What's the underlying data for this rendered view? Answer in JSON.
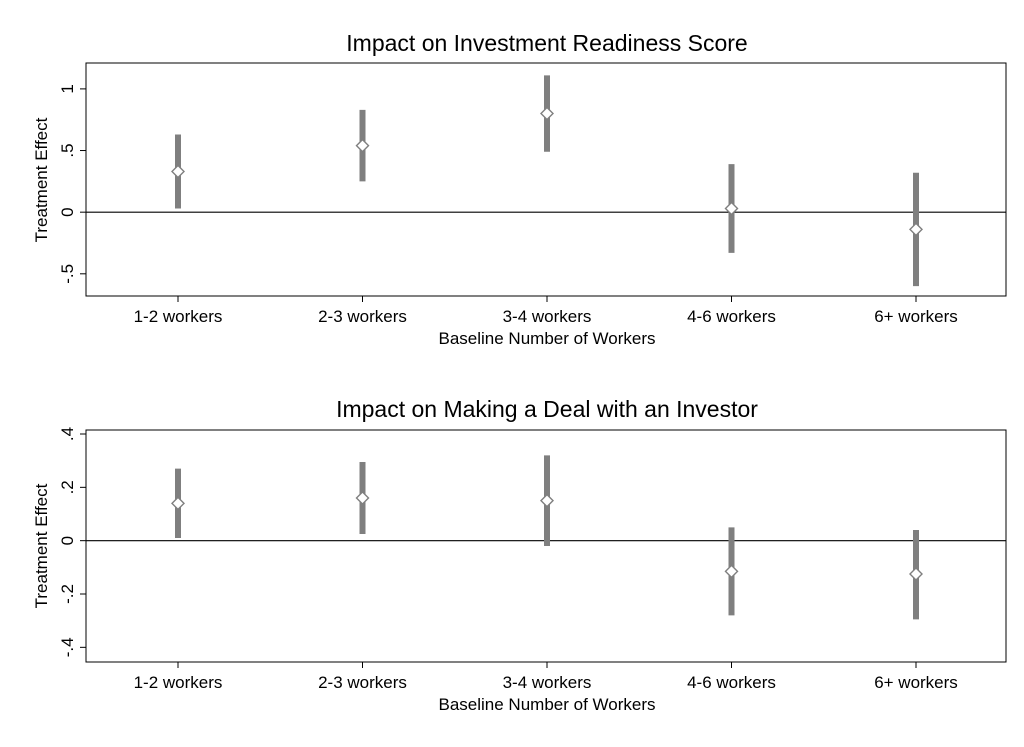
{
  "colors": {
    "ci": "#7f7f7f",
    "marker_stroke": "#7f7f7f",
    "marker_fill": "#ffffff",
    "axis": "#000000"
  },
  "chart_data": [
    {
      "type": "scatter",
      "title": "Impact on Investment Readiness Score",
      "xlabel": "Baseline Number of Workers",
      "ylabel": "Treatment Effect",
      "categories": [
        "1-2 workers",
        "2-3 workers",
        "3-4 workers",
        "4-6 workers",
        "6+ workers"
      ],
      "estimates": [
        0.33,
        0.54,
        0.8,
        0.03,
        -0.14
      ],
      "ci_low": [
        0.03,
        0.25,
        0.49,
        -0.33,
        -0.6
      ],
      "ci_high": [
        0.63,
        0.83,
        1.11,
        0.39,
        0.32
      ],
      "yticks": [
        1,
        0.5,
        0,
        -0.5
      ],
      "ytick_labels": [
        "1",
        ".5",
        "0",
        "-.5"
      ],
      "ylim": [
        -0.68,
        1.21
      ],
      "reference_line": 0,
      "grid": false,
      "legend": "none"
    },
    {
      "type": "scatter",
      "title": "Impact on Making a Deal with an Investor",
      "xlabel": "Baseline Number of Workers",
      "ylabel": "Treatment Effect",
      "categories": [
        "1-2 workers",
        "2-3 workers",
        "3-4 workers",
        "4-6 workers",
        "6+ workers"
      ],
      "estimates": [
        0.14,
        0.16,
        0.15,
        -0.115,
        -0.125
      ],
      "ci_low": [
        0.01,
        0.025,
        -0.02,
        -0.28,
        -0.295
      ],
      "ci_high": [
        0.27,
        0.295,
        0.32,
        0.05,
        0.04
      ],
      "yticks": [
        0.4,
        0.2,
        0,
        -0.2,
        -0.4
      ],
      "ytick_labels": [
        ".4",
        ".2",
        "0",
        "-.2",
        "-.4"
      ],
      "ylim": [
        -0.455,
        0.415
      ],
      "reference_line": 0,
      "grid": false,
      "legend": "none"
    }
  ]
}
